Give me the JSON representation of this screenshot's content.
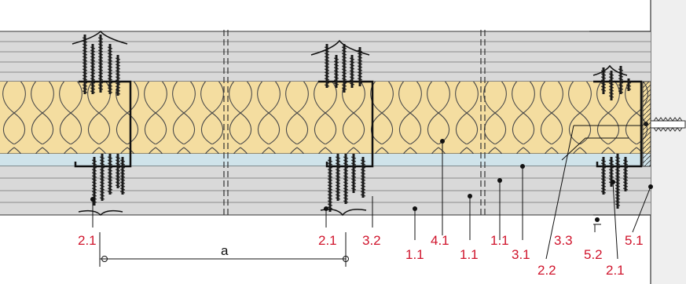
{
  "colors": {
    "board": "#d9d9d9",
    "board_line": "#8a8a8a",
    "insulation": "#f4dda0",
    "insulation_line": "#4a4a4a",
    "membrane": "#cfe3ea",
    "wall": "#efefef",
    "screw": "#1a1a1a",
    "callout": "#d0142c"
  },
  "labels": {
    "c1": "2.1",
    "c2": "2.1",
    "c3": "3.2",
    "c4": "4.1",
    "c5": "1.1",
    "c6": "1.1",
    "c7": "1.1",
    "c8": "3.1",
    "c9": "3.3",
    "c10": "2.2",
    "c11": "5.2",
    "c12": "2.1",
    "c13": "5.1",
    "dimension": "a"
  }
}
